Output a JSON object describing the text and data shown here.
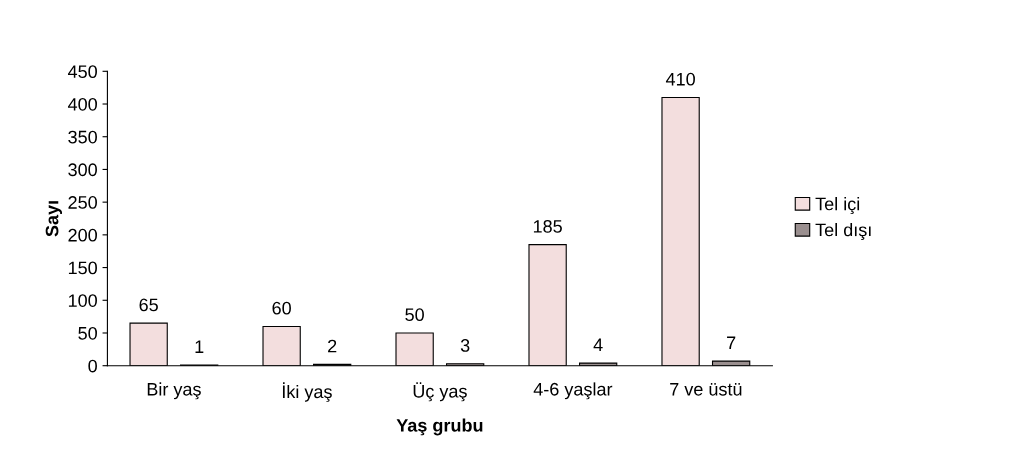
{
  "chart_data": {
    "type": "bar",
    "xlabel": "Yaş grubu",
    "ylabel": "Sayı",
    "categories": [
      "Bir yaş",
      "İki yaş",
      "Üç yaş",
      "4-6 yaşlar",
      "7 ve üstü"
    ],
    "series": [
      {
        "name": "Tel içi",
        "color": "#f3dede",
        "values": [
          65,
          60,
          50,
          185,
          410
        ]
      },
      {
        "name": "Tel dışı",
        "color": "#9a8f8f",
        "values": [
          1,
          2,
          3,
          4,
          7
        ]
      }
    ],
    "ylim": [
      0,
      450
    ],
    "yticks": [
      0,
      50,
      100,
      150,
      200,
      250,
      300,
      350,
      400,
      450
    ],
    "data_labels": true,
    "legend": "right",
    "grid": false
  }
}
